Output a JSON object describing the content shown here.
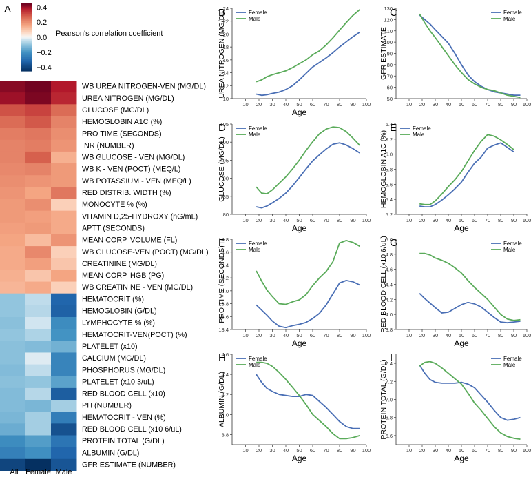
{
  "heatmap": {
    "panel_letter": "A",
    "colorbar": {
      "label": "Pearson's correlation coefficient",
      "ticks": [
        {
          "v": 0.4,
          "t": "0.4"
        },
        {
          "v": 0.2,
          "t": "0.2"
        },
        {
          "v": 0.0,
          "t": "0.0"
        },
        {
          "v": -0.2,
          "t": "−0.2"
        },
        {
          "v": -0.4,
          "t": "−0.4"
        }
      ],
      "range": [
        -0.45,
        0.45
      ]
    },
    "columns": [
      "All",
      "Female",
      "Male"
    ],
    "rows": [
      {
        "label": "WB UREA NITROGEN-VEN (MG/DL)",
        "values": [
          0.42,
          0.44,
          0.38
        ]
      },
      {
        "label": "UREA NITROGEN (MG/DL)",
        "values": [
          0.4,
          0.43,
          0.36
        ]
      },
      {
        "label": "GLUCOSE (MG/DL)",
        "values": [
          0.3,
          0.32,
          0.26
        ]
      },
      {
        "label": "HEMOGLOBIN A1C (%)",
        "values": [
          0.26,
          0.29,
          0.22
        ]
      },
      {
        "label": "PRO TIME (SECONDS)",
        "values": [
          0.23,
          0.24,
          0.2
        ]
      },
      {
        "label": "INR (NUMBER)",
        "values": [
          0.22,
          0.23,
          0.19
        ]
      },
      {
        "label": "WB GLUCOSE - VEN (MG/DL)",
        "values": [
          0.22,
          0.28,
          0.14
        ]
      },
      {
        "label": "WB K - VEN (POCT) (MEQ/L)",
        "values": [
          0.21,
          0.22,
          0.18
        ]
      },
      {
        "label": "WB POTASSIUM - VEN (MEQ/L)",
        "values": [
          0.2,
          0.19,
          0.18
        ]
      },
      {
        "label": "RED DISTRIB. WIDTH (%)",
        "values": [
          0.19,
          0.16,
          0.24
        ]
      },
      {
        "label": "MONOCYTE % (%)",
        "values": [
          0.18,
          0.2,
          0.08
        ]
      },
      {
        "label": "VITAMIN D,25-HYDROXY (nG/mL)",
        "values": [
          0.18,
          0.17,
          0.15
        ]
      },
      {
        "label": "APTT (SECONDS)",
        "values": [
          0.17,
          0.18,
          0.15
        ]
      },
      {
        "label": "MEAN CORP. VOLUME (FL)",
        "values": [
          0.16,
          0.12,
          0.19
        ]
      },
      {
        "label": "WB GLUCOSE-VEN (POCT) (MG/DL)",
        "values": [
          0.15,
          0.21,
          0.08
        ]
      },
      {
        "label": "CREATININE (MG/DL)",
        "values": [
          0.15,
          0.17,
          0.1
        ]
      },
      {
        "label": "MEAN CORP. HGB (PG)",
        "values": [
          0.14,
          0.1,
          0.16
        ]
      },
      {
        "label": "WB CREATININE - VEN (MG/DL)",
        "values": [
          0.13,
          0.15,
          0.08
        ]
      },
      {
        "label": "HEMATOCRIT (%)",
        "values": [
          -0.1,
          -0.05,
          -0.32
        ]
      },
      {
        "label": "HEMOGLOBIN (G/DL)",
        "values": [
          -0.1,
          -0.06,
          -0.33
        ]
      },
      {
        "label": "LYMPHOCYTE % (%)",
        "values": [
          -0.11,
          -0.03,
          -0.22
        ]
      },
      {
        "label": "HEMATOCRIT-VEN(POCT) (%)",
        "values": [
          -0.1,
          -0.07,
          -0.2
        ]
      },
      {
        "label": "PLATELET (x10)",
        "values": [
          -0.11,
          -0.12,
          -0.14
        ]
      },
      {
        "label": "CALCIUM (MG/DL)",
        "values": [
          -0.11,
          -0.02,
          -0.24
        ]
      },
      {
        "label": "PHOSPHORUS (MG/DL)",
        "values": [
          -0.12,
          -0.05,
          -0.24
        ]
      },
      {
        "label": "PLATELET (x10 3/uL)",
        "values": [
          -0.11,
          -0.1,
          -0.17
        ]
      },
      {
        "label": "RED BLOOD CELL (x10)",
        "values": [
          -0.12,
          -0.06,
          -0.34
        ]
      },
      {
        "label": "PH (NUMBER)",
        "values": [
          -0.12,
          -0.13,
          -0.08
        ]
      },
      {
        "label": "HEMATOCRIT - VEN (%)",
        "values": [
          -0.13,
          -0.08,
          -0.26
        ]
      },
      {
        "label": "RED BLOOD CELL (x10 6/uL)",
        "values": [
          -0.15,
          -0.08,
          -0.37
        ]
      },
      {
        "label": "PROTEIN TOTAL (G/DL)",
        "values": [
          -0.22,
          -0.18,
          -0.28
        ]
      },
      {
        "label": "ALBUMIN (G/DL)",
        "values": [
          -0.25,
          -0.21,
          -0.32
        ]
      },
      {
        "label": "GFR ESTIMATE (NUMBER)",
        "values": [
          -0.4,
          -0.46,
          -0.36
        ]
      }
    ]
  },
  "legend_labels": {
    "female": "Female",
    "male": "Male"
  },
  "colors": {
    "female": "#4a6fb5",
    "male": "#5aab5a",
    "pos": "#67001f",
    "neg": "#053061"
  },
  "chart_data": [
    {
      "type": "line",
      "panel": "B",
      "title": "",
      "xlabel": "Age",
      "ylabel": "UREA NITROGEN (MG/DL)",
      "xlim": [
        0,
        100
      ],
      "ylim": [
        10,
        24
      ],
      "xticks": [
        10,
        20,
        30,
        40,
        50,
        60,
        70,
        80,
        90,
        100
      ],
      "yticks": [
        10,
        12,
        14,
        16,
        18,
        20,
        22,
        24
      ],
      "x": [
        18,
        22,
        26,
        30,
        35,
        40,
        45,
        50,
        55,
        60,
        65,
        70,
        75,
        80,
        85,
        90,
        95
      ],
      "series": [
        {
          "name": "Female",
          "values": [
            10.7,
            10.5,
            10.6,
            10.8,
            11.0,
            11.4,
            12.0,
            12.9,
            13.9,
            14.9,
            15.6,
            16.3,
            17.1,
            18.0,
            18.8,
            19.6,
            20.3
          ]
        },
        {
          "name": "Male",
          "values": [
            12.6,
            12.9,
            13.4,
            13.7,
            14.0,
            14.3,
            14.8,
            15.4,
            16.0,
            16.8,
            17.4,
            18.3,
            19.4,
            20.6,
            21.8,
            22.9,
            23.8
          ]
        }
      ]
    },
    {
      "type": "line",
      "panel": "C",
      "title": "",
      "xlabel": "",
      "ylabel": "GFR ESTIMATE",
      "xlim": [
        0,
        100
      ],
      "ylim": [
        50,
        130
      ],
      "xticks": [
        10,
        20,
        30,
        40,
        50,
        60,
        70,
        80,
        90,
        100
      ],
      "yticks": [
        50,
        60,
        70,
        80,
        90,
        100,
        110,
        120,
        130
      ],
      "x": [
        18,
        22,
        26,
        30,
        35,
        40,
        45,
        50,
        55,
        60,
        65,
        70,
        75,
        80,
        85,
        90,
        95
      ],
      "series": [
        {
          "name": "Female",
          "values": [
            124,
            120,
            116,
            111,
            105,
            99,
            90,
            80,
            71,
            65,
            61,
            58,
            56,
            55,
            54,
            53,
            53
          ]
        },
        {
          "name": "Male",
          "values": [
            125,
            117,
            110,
            104,
            96,
            88,
            80,
            73,
            67,
            63,
            60,
            58,
            57,
            55,
            53,
            52,
            51
          ]
        }
      ]
    },
    {
      "type": "line",
      "panel": "D",
      "title": "",
      "xlabel": "Age",
      "ylabel": "GLUCOSE (MG/DL)",
      "xlim": [
        0,
        100
      ],
      "ylim": [
        80,
        105
      ],
      "xticks": [
        10,
        20,
        30,
        40,
        50,
        60,
        70,
        80,
        90,
        100
      ],
      "yticks": [
        80,
        85,
        90,
        95,
        100,
        105
      ],
      "x": [
        18,
        22,
        26,
        30,
        35,
        40,
        45,
        50,
        55,
        60,
        65,
        70,
        75,
        80,
        85,
        90,
        95
      ],
      "series": [
        {
          "name": "Female",
          "values": [
            82.1,
            81.8,
            82.3,
            83.2,
            84.4,
            85.9,
            87.9,
            90.2,
            92.6,
            94.8,
            96.5,
            98.1,
            99.4,
            99.8,
            99.2,
            98.2,
            97.0
          ]
        },
        {
          "name": "Male",
          "values": [
            87.6,
            85.9,
            85.7,
            86.8,
            88.6,
            90.4,
            92.6,
            95.0,
            97.7,
            100.1,
            102.3,
            103.6,
            104.2,
            104.0,
            102.9,
            101.1,
            99.1
          ]
        }
      ]
    },
    {
      "type": "line",
      "panel": "E",
      "title": "",
      "xlabel": "Age",
      "ylabel": "HEMOGLOBIN A1C (%)",
      "xlim": [
        0,
        100
      ],
      "ylim": [
        5.2,
        6.4
      ],
      "xticks": [
        10,
        20,
        30,
        40,
        50,
        60,
        70,
        80,
        90,
        100
      ],
      "yticks": [
        5.2,
        5.4,
        5.6,
        5.8,
        6.0,
        6.2,
        6.4
      ],
      "x": [
        18,
        22,
        26,
        30,
        35,
        40,
        45,
        50,
        55,
        60,
        65,
        70,
        75,
        80,
        85,
        90
      ],
      "series": [
        {
          "name": "Female",
          "values": [
            5.31,
            5.3,
            5.3,
            5.33,
            5.39,
            5.46,
            5.54,
            5.63,
            5.76,
            5.88,
            5.96,
            6.08,
            6.12,
            6.15,
            6.09,
            6.03
          ]
        },
        {
          "name": "Male",
          "values": [
            5.34,
            5.33,
            5.33,
            5.38,
            5.47,
            5.57,
            5.66,
            5.77,
            5.91,
            6.05,
            6.17,
            6.26,
            6.24,
            6.19,
            6.13,
            6.06
          ]
        }
      ]
    },
    {
      "type": "line",
      "panel": "F",
      "title": "",
      "xlabel": "Age",
      "ylabel": "PRO TIME (SECONDS)",
      "xlim": [
        0,
        100
      ],
      "ylim": [
        13.4,
        14.8
      ],
      "xticks": [
        10,
        20,
        30,
        40,
        50,
        60,
        70,
        80,
        90,
        100
      ],
      "yticks": [
        13.4,
        13.6,
        13.8,
        14.0,
        14.2,
        14.4,
        14.6,
        14.8
      ],
      "x": [
        18,
        22,
        26,
        30,
        35,
        40,
        45,
        50,
        55,
        60,
        65,
        70,
        75,
        80,
        85,
        90,
        95
      ],
      "series": [
        {
          "name": "Female",
          "values": [
            13.78,
            13.7,
            13.62,
            13.53,
            13.45,
            13.43,
            13.46,
            13.48,
            13.51,
            13.57,
            13.65,
            13.78,
            13.95,
            14.12,
            14.16,
            14.14,
            14.09
          ]
        },
        {
          "name": "Male",
          "values": [
            14.31,
            14.15,
            14.01,
            13.91,
            13.8,
            13.79,
            13.83,
            13.86,
            13.94,
            14.08,
            14.2,
            14.3,
            14.45,
            14.74,
            14.78,
            14.75,
            14.69
          ]
        }
      ]
    },
    {
      "type": "line",
      "panel": "G",
      "title": "",
      "xlabel": "Age",
      "ylabel": "RED BLOOD CELL (x10 6/uL)",
      "xlim": [
        0,
        100
      ],
      "ylim": [
        3.8,
        5.0
      ],
      "xticks": [
        10,
        20,
        30,
        40,
        50,
        60,
        70,
        80,
        90,
        100
      ],
      "yticks": [
        3.8,
        4.0,
        4.2,
        4.4,
        4.6,
        4.8,
        5.0
      ],
      "x": [
        18,
        22,
        26,
        30,
        35,
        40,
        45,
        50,
        55,
        60,
        65,
        70,
        75,
        80,
        85,
        90,
        95
      ],
      "series": [
        {
          "name": "Female",
          "values": [
            4.28,
            4.21,
            4.15,
            4.09,
            4.02,
            4.03,
            4.08,
            4.13,
            4.16,
            4.14,
            4.1,
            4.03,
            3.96,
            3.9,
            3.89,
            3.9,
            3.91
          ]
        },
        {
          "name": "Male",
          "values": [
            4.81,
            4.81,
            4.79,
            4.75,
            4.72,
            4.68,
            4.62,
            4.55,
            4.45,
            4.36,
            4.28,
            4.2,
            4.1,
            4.0,
            3.94,
            3.92,
            3.93
          ]
        }
      ]
    },
    {
      "type": "line",
      "panel": "H",
      "title": "",
      "xlabel": "Age",
      "ylabel": "ALBUMIN (G/DL)",
      "xlim": [
        0,
        100
      ],
      "ylim": [
        3.7,
        4.6
      ],
      "xticks": [
        10,
        20,
        30,
        40,
        50,
        60,
        70,
        80,
        90,
        100
      ],
      "yticks": [
        3.8,
        4.0,
        4.2,
        4.4,
        4.6
      ],
      "x": [
        18,
        22,
        26,
        30,
        35,
        40,
        45,
        50,
        55,
        60,
        65,
        70,
        75,
        80,
        85,
        90,
        95
      ],
      "series": [
        {
          "name": "Female",
          "values": [
            4.4,
            4.32,
            4.26,
            4.23,
            4.2,
            4.19,
            4.18,
            4.18,
            4.2,
            4.19,
            4.13,
            4.07,
            4.0,
            3.93,
            3.88,
            3.86,
            3.86
          ]
        },
        {
          "name": "Male",
          "values": [
            4.52,
            4.52,
            4.51,
            4.48,
            4.42,
            4.35,
            4.27,
            4.19,
            4.1,
            4.0,
            3.94,
            3.88,
            3.81,
            3.76,
            3.76,
            3.77,
            3.79
          ]
        }
      ]
    },
    {
      "type": "line",
      "panel": "I",
      "title": "",
      "xlabel": "Age",
      "ylabel": "PROTEIN TOTAL (G/DL)",
      "xlim": [
        0,
        100
      ],
      "ylim": [
        6.5,
        7.5
      ],
      "xticks": [
        10,
        20,
        30,
        40,
        50,
        60,
        70,
        80,
        90,
        100
      ],
      "yticks": [
        6.6,
        6.8,
        7.0,
        7.2,
        7.4
      ],
      "x": [
        18,
        22,
        26,
        30,
        35,
        40,
        45,
        50,
        55,
        60,
        65,
        70,
        75,
        80,
        85,
        90,
        95
      ],
      "series": [
        {
          "name": "Female",
          "values": [
            7.38,
            7.29,
            7.22,
            7.19,
            7.18,
            7.18,
            7.18,
            7.19,
            7.17,
            7.13,
            7.05,
            6.97,
            6.88,
            6.8,
            6.77,
            6.78,
            6.8
          ]
        },
        {
          "name": "Male",
          "values": [
            7.37,
            7.41,
            7.42,
            7.4,
            7.35,
            7.29,
            7.23,
            7.17,
            7.07,
            6.96,
            6.88,
            6.79,
            6.7,
            6.63,
            6.59,
            6.57,
            6.56
          ]
        }
      ]
    }
  ]
}
